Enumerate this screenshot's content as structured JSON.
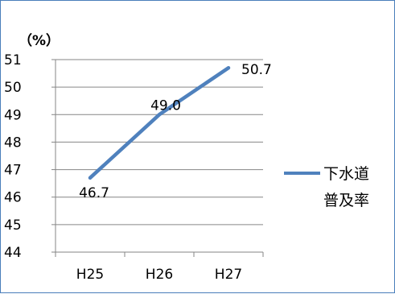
{
  "chart_data": {
    "type": "line",
    "unit_label": "（%）",
    "categories": [
      "H25",
      "H26",
      "H27"
    ],
    "series": [
      {
        "name": "下水道普及率",
        "name_lines": [
          "下水道",
          "普及率"
        ],
        "values": [
          46.7,
          49.0,
          50.7
        ],
        "data_labels": [
          "46.7",
          "49.0",
          "50.7"
        ]
      }
    ],
    "ylim": [
      44,
      51
    ],
    "y_ticks": [
      44,
      45,
      46,
      47,
      48,
      49,
      50,
      51
    ],
    "grid": true,
    "legend_position": "right",
    "line_color": "#4f81bd",
    "grid_color": "#868686"
  }
}
